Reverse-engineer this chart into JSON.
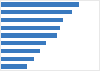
{
  "values": [
    80,
    72,
    63,
    60,
    57,
    46,
    40,
    34,
    27
  ],
  "bar_color": "#3a7abf",
  "background_color": "#e8e8e8",
  "plot_background": "#ffffff",
  "bar_height": 0.55,
  "xlim": [
    0,
    100
  ]
}
